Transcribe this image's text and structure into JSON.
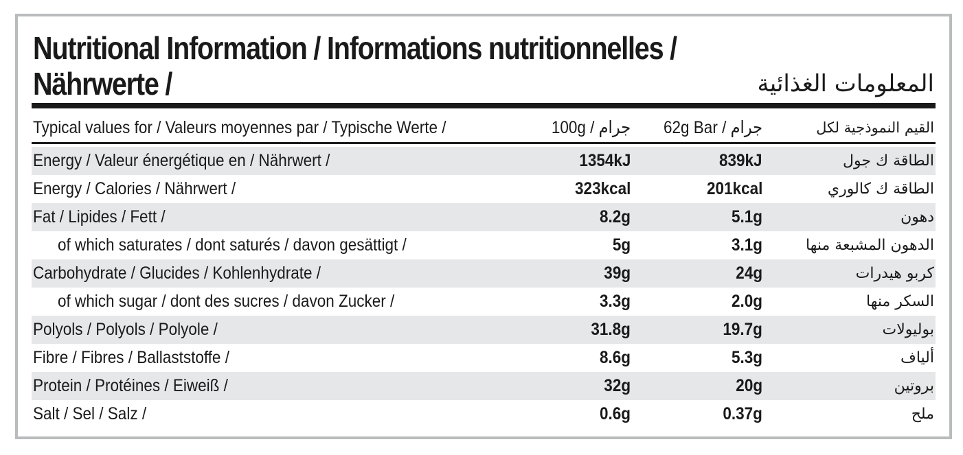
{
  "title": {
    "line1": "Nutritional Information / Informations nutritionnelles /",
    "line2": "Nährwerte /",
    "arabic": "المعلومات الغذائية"
  },
  "header": {
    "label": "Typical values for / Valeurs moyennes par / Typische Werte /",
    "col_100g": "100g / جرام",
    "col_bar": "62g Bar / جرام",
    "arabic": "القيم النموذجية لكل"
  },
  "rows": [
    {
      "label": "Energy / Valeur énergétique en / Nährwert /",
      "per100": "1354kJ",
      "perBar": "839kJ",
      "arabic": "الطاقة ك جول"
    },
    {
      "label": "Energy / Calories / Nährwert /",
      "per100": "323kcal",
      "perBar": "201kcal",
      "arabic": "الطاقة ك كالوري"
    },
    {
      "label": "Fat / Lipides / Fett /",
      "per100": "8.2g",
      "perBar": "5.1g",
      "arabic": "دهون"
    },
    {
      "label": "of which saturates / dont saturés / davon gesättigt /",
      "per100": "5g",
      "perBar": "3.1g",
      "arabic": "الدهون المشبعة منها"
    },
    {
      "label": "Carbohydrate / Glucides / Kohlenhydrate /",
      "per100": "39g",
      "perBar": "24g",
      "arabic": "كربو هيدرات"
    },
    {
      "label": "of which sugar / dont des sucres / davon Zucker /",
      "per100": "3.3g",
      "perBar": "2.0g",
      "arabic": "السكر منها"
    },
    {
      "label": "Polyols / Polyols / Polyole /",
      "per100": "31.8g",
      "perBar": "19.7g",
      "arabic": "بوليولات"
    },
    {
      "label": "Fibre / Fibres / Ballaststoffe /",
      "per100": "8.6g",
      "perBar": "5.3g",
      "arabic": "ألياف"
    },
    {
      "label": "Protein / Protéines / Eiweiß /",
      "per100": "32g",
      "perBar": "20g",
      "arabic": "بروتين"
    },
    {
      "label": "Salt / Sel / Salz /",
      "per100": "0.6g",
      "perBar": "0.37g",
      "arabic": "ملح"
    }
  ]
}
